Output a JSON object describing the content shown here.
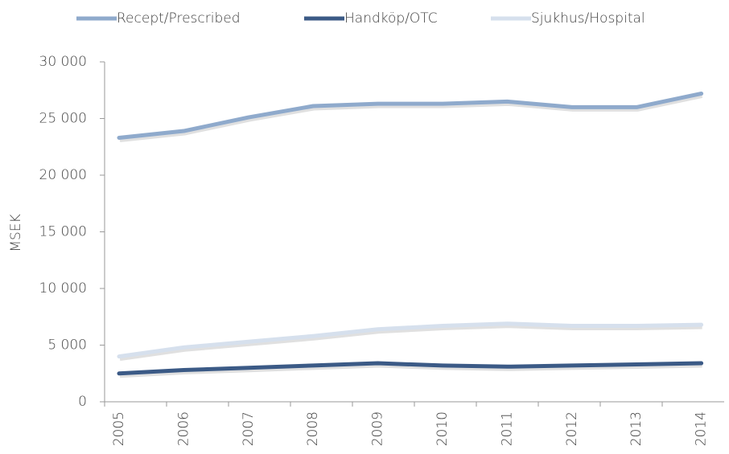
{
  "chart_data": {
    "type": "line",
    "y_label": "MSEK",
    "categories": [
      "2005",
      "2006",
      "2007",
      "2008",
      "2009",
      "2010",
      "2011",
      "2012",
      "2013",
      "2014"
    ],
    "series": [
      {
        "name": "Recept/Prescribed",
        "color": "#8faacc",
        "values": [
          23.3,
          23.9,
          25.1,
          26.1,
          26.3,
          26.3,
          26.5,
          26.0,
          26.0,
          27.2
        ]
      },
      {
        "name": "Handköp/OTC",
        "color": "#3b5a86",
        "values": [
          2.5,
          2.8,
          3.0,
          3.2,
          3.4,
          3.2,
          3.1,
          3.2,
          3.3,
          3.4
        ]
      },
      {
        "name": "Sjukhus/Hospital",
        "color": "#d6e0ed",
        "values": [
          4.0,
          4.8,
          5.3,
          5.8,
          6.4,
          6.7,
          6.9,
          6.7,
          6.7,
          6.8
        ]
      }
    ],
    "ylim": [
      0,
      30
    ],
    "yticks": [
      {
        "value": 0,
        "label": "0"
      },
      {
        "value": 5,
        "label": "5 000"
      },
      {
        "value": 10,
        "label": "10 000"
      },
      {
        "value": 15,
        "label": "15 000"
      },
      {
        "value": 20,
        "label": "20 000"
      },
      {
        "value": 25,
        "label": "25 000"
      },
      {
        "value": 30,
        "label": "30 000"
      }
    ],
    "grid": false
  }
}
